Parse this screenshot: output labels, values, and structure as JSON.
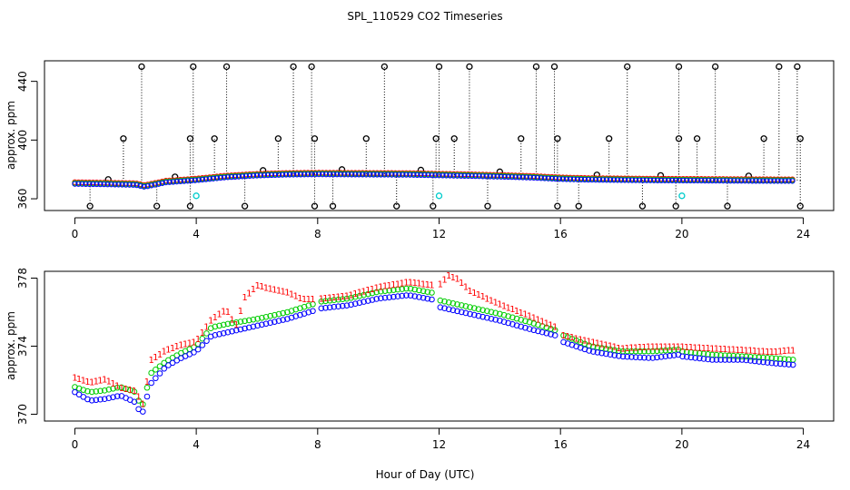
{
  "chart_data": [
    {
      "type": "scatter",
      "title": "SPL_110529  CO2 Timeseries",
      "ylabel": "approx. ppm",
      "xlim": [
        -1,
        25
      ],
      "ylim": [
        352,
        454
      ],
      "x_ticks": [
        "0",
        "4",
        "8",
        "12",
        "16",
        "20",
        "24"
      ],
      "y_ticks": [
        "360",
        "400",
        "440"
      ],
      "colors": {
        "spike": "#000000",
        "red": "#ff0000",
        "green": "#00cc00",
        "blue": "#0000ff",
        "cyan": "#00cccc"
      },
      "baseline": {
        "x": [
          0,
          1,
          2,
          2.3,
          3,
          4,
          5,
          6,
          7,
          8,
          9,
          10,
          11,
          12,
          13,
          14,
          15,
          16,
          17,
          18,
          19,
          20,
          21,
          22,
          23,
          23.7
        ],
        "y": [
          370.5,
          370.2,
          369.8,
          368.5,
          371.5,
          373,
          375,
          376.2,
          376.8,
          377,
          376.9,
          376.8,
          376.7,
          376.3,
          375.9,
          375.4,
          374.8,
          373.8,
          373.3,
          373.1,
          372.9,
          372.8,
          372.7,
          372.6,
          372.5,
          372.5
        ]
      },
      "spikes_high_x": [
        2.2,
        3.9,
        5.0,
        7.2,
        7.8,
        10.2,
        12.0,
        13.0,
        15.2,
        15.8,
        18.2,
        19.9,
        21.1,
        23.2,
        23.8
      ],
      "spikes_mid_x": [
        1.6,
        3.8,
        4.6,
        6.7,
        7.9,
        9.6,
        11.9,
        12.5,
        14.7,
        15.9,
        17.6,
        19.9,
        20.5,
        22.7,
        23.9
      ],
      "spikes_low_x": [
        0.5,
        2.7,
        3.8,
        5.6,
        7.9,
        8.5,
        10.6,
        11.8,
        13.6,
        15.9,
        16.6,
        18.7,
        19.8,
        21.5,
        23.9
      ],
      "spikes_small_x": [
        1.1,
        3.3,
        6.2,
        8.8,
        11.4,
        14.0,
        17.2,
        19.3,
        22.2
      ]
    },
    {
      "type": "scatter",
      "ylabel": "approx. ppm",
      "xlabel": "Hour of Day (UTC)",
      "xlim": [
        -1,
        25
      ],
      "ylim": [
        369.6,
        378.4
      ],
      "x_ticks": [
        "0",
        "4",
        "8",
        "12",
        "16",
        "20",
        "24"
      ],
      "y_ticks": [
        "370",
        "374",
        "378"
      ],
      "marker_glyph": "1",
      "gaps": [
        [
          7.9,
          8.0
        ],
        [
          11.9,
          12.0
        ],
        [
          15.95,
          16.0
        ],
        [
          19.9,
          20.0
        ]
      ],
      "series": [
        {
          "name": "red",
          "color": "#ff0000",
          "x": [
            0,
            0.5,
            1,
            1.5,
            2,
            2.25,
            2.5,
            3,
            3.5,
            4,
            4.5,
            5,
            5.3,
            5.6,
            6,
            6.5,
            7,
            7.5,
            7.9,
            8,
            9,
            10,
            11,
            11.9,
            12,
            12.3,
            12.6,
            13,
            14,
            15,
            15.9,
            16,
            17,
            18,
            19,
            19.9,
            20,
            21,
            22,
            23,
            23.7
          ],
          "y": [
            372.2,
            371.9,
            372.1,
            371.6,
            371.4,
            370.6,
            373.2,
            373.8,
            374.1,
            374.3,
            375.6,
            376.2,
            375.2,
            376.9,
            377.6,
            377.4,
            377.2,
            376.8,
            376.8,
            376.8,
            377.0,
            377.5,
            377.8,
            377.6,
            377.6,
            378.2,
            378.0,
            377.3,
            376.5,
            375.8,
            375.1,
            374.7,
            374.3,
            373.9,
            374.0,
            374.0,
            374.0,
            373.9,
            373.8,
            373.7,
            373.8
          ]
        },
        {
          "name": "green",
          "color": "#00cc00",
          "x": [
            0,
            0.5,
            1,
            1.5,
            2,
            2.2,
            2.5,
            3,
            3.5,
            4,
            4.5,
            5,
            6,
            7,
            7.9,
            8,
            9,
            10,
            11,
            11.9,
            12,
            13,
            14,
            15,
            15.9,
            16,
            17,
            18,
            19,
            19.9,
            20,
            21,
            22,
            23,
            23.7
          ],
          "y": [
            371.6,
            371.3,
            371.4,
            371.6,
            371.3,
            370.3,
            372.4,
            373.1,
            373.6,
            374.0,
            375.1,
            375.3,
            375.6,
            376.0,
            376.5,
            376.6,
            376.8,
            377.2,
            377.4,
            377.1,
            376.7,
            376.3,
            375.9,
            375.4,
            374.9,
            374.7,
            374.0,
            373.7,
            373.7,
            373.8,
            373.7,
            373.5,
            373.4,
            373.3,
            373.2
          ]
        },
        {
          "name": "blue",
          "color": "#0000ff",
          "x": [
            0,
            0.5,
            1,
            1.5,
            2,
            2.2,
            2.5,
            3,
            3.5,
            4,
            4.5,
            5,
            6,
            7,
            7.9,
            8,
            9,
            10,
            11,
            11.9,
            12,
            13,
            14,
            15,
            15.9,
            16,
            17,
            18,
            19,
            19.9,
            20,
            21,
            22,
            23,
            23.7
          ],
          "y": [
            371.3,
            370.8,
            370.9,
            371.1,
            370.7,
            369.9,
            371.8,
            372.8,
            373.3,
            373.7,
            374.6,
            374.8,
            375.2,
            375.6,
            376.1,
            376.2,
            376.4,
            376.8,
            377.0,
            376.7,
            376.3,
            375.9,
            375.5,
            375.0,
            374.6,
            374.3,
            373.7,
            373.4,
            373.3,
            373.5,
            373.4,
            373.2,
            373.2,
            373.0,
            372.9
          ]
        }
      ]
    }
  ]
}
